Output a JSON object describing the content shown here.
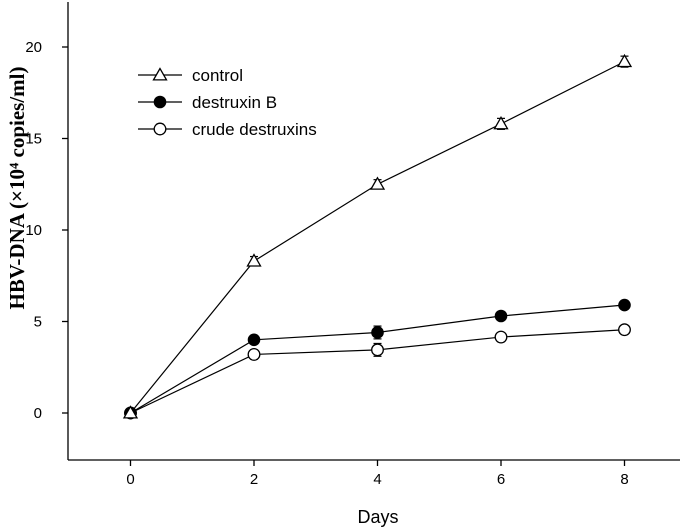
{
  "chart_data": {
    "type": "line",
    "title": "",
    "xlabel": "Days",
    "ylabel": "HBV-DNA (×10⁴ copies/ml)",
    "x": [
      0,
      2,
      4,
      6,
      8
    ],
    "xlim": [
      -1,
      9
    ],
    "ylim": [
      -2.5,
      22.5
    ],
    "xticks": [
      0,
      2,
      4,
      6,
      8
    ],
    "yticks": [
      0,
      5,
      10,
      15,
      20
    ],
    "grid": false,
    "legend_position": "top-left",
    "series": [
      {
        "name": "control",
        "marker": "open-triangle",
        "values": [
          0,
          8.3,
          12.5,
          15.8,
          19.2
        ],
        "errors": [
          0.1,
          0.25,
          0.25,
          0.3,
          0.3
        ]
      },
      {
        "name": "destruxin B",
        "marker": "filled-circle",
        "values": [
          0,
          4.0,
          4.4,
          5.3,
          5.9
        ],
        "errors": [
          0.1,
          0.2,
          0.35,
          0.15,
          0.15
        ]
      },
      {
        "name": "crude destruxins",
        "marker": "open-circle",
        "values": [
          0,
          3.2,
          3.45,
          4.15,
          4.55
        ],
        "errors": [
          0.1,
          0.25,
          0.35,
          0.15,
          0.15
        ]
      }
    ]
  }
}
